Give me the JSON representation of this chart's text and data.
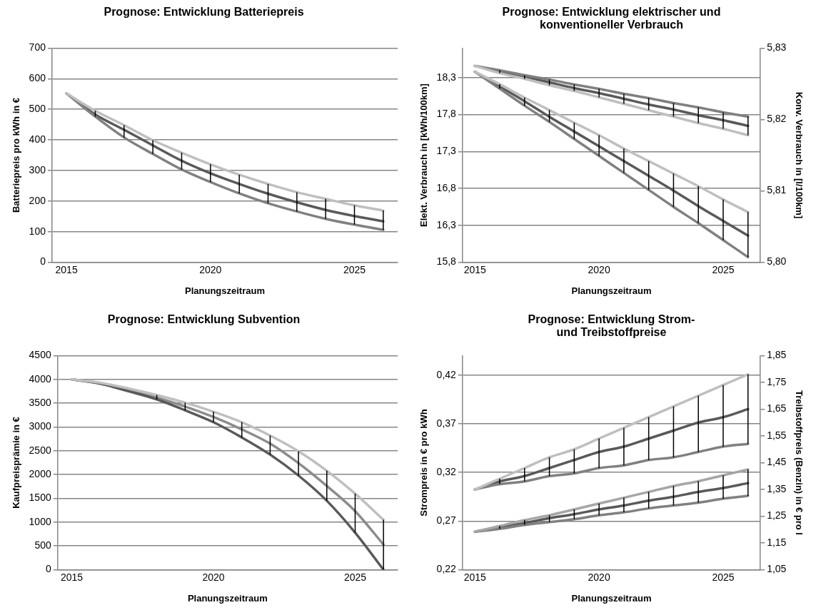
{
  "chart_data": [
    {
      "type": "line",
      "title": "Prognose: Entwicklung Batteriepreis",
      "xlabel": "Planungszeitraum",
      "ylabel": "Batteriepreis pro kWh in €",
      "x": [
        2015,
        2016,
        2017,
        2018,
        2019,
        2020,
        2021,
        2022,
        2023,
        2024,
        2025,
        2026
      ],
      "xlim": [
        2014.5,
        2026.5
      ],
      "xticks": [
        2015,
        2020,
        2025
      ],
      "ylim": [
        0,
        700
      ],
      "yticks": [
        0,
        100,
        200,
        300,
        400,
        500,
        600,
        700
      ],
      "grid": "y",
      "legend": false,
      "marker": "none",
      "line_style": "solid",
      "series": [
        {
          "color": "#bfbfbf",
          "values": [
            552,
            495,
            448,
            399,
            358,
            320,
            286,
            256,
            229,
            207,
            186,
            169
          ]
        },
        {
          "color": "#808080",
          "values": [
            552,
            476,
            408,
            354,
            303,
            262,
            225,
            193,
            166,
            142,
            123,
            106
          ]
        },
        {
          "color": "#595959",
          "values": [
            552,
            483,
            433,
            382,
            332,
            291,
            256,
            224,
            196,
            171,
            151,
            134
          ],
          "errors": [
            null,
            [
              476,
              495
            ],
            [
              408,
              448
            ],
            [
              354,
              399
            ],
            [
              303,
              358
            ],
            [
              262,
              320
            ],
            [
              225,
              286
            ],
            [
              193,
              256
            ],
            [
              166,
              229
            ],
            [
              142,
              207
            ],
            [
              123,
              186
            ],
            [
              106,
              169
            ]
          ]
        }
      ]
    },
    {
      "type": "line",
      "title": "Prognose: Entwicklung elektrischer und konventioneller Verbrauch",
      "xlabel": "Planungszeitraum",
      "ylabel": "Elekt. Verbrauch in [kWh/100km]",
      "y2label": "Konv. Verbrauch in [l/100km]",
      "x": [
        2015,
        2016,
        2017,
        2018,
        2019,
        2020,
        2021,
        2022,
        2023,
        2024,
        2025,
        2026
      ],
      "xlim": [
        2014.5,
        2026.5
      ],
      "xticks": [
        2015,
        2020,
        2025
      ],
      "ylim": [
        15.8,
        18.7
      ],
      "yticks": [
        {
          "value": 15.8,
          "label": "15,8"
        },
        {
          "value": 16.3,
          "label": "16,3"
        },
        {
          "value": 16.8,
          "label": "16,8"
        },
        {
          "value": 17.3,
          "label": "17,3"
        },
        {
          "value": 17.8,
          "label": "17,8"
        },
        {
          "value": 18.3,
          "label": "18,3"
        }
      ],
      "y2lim": [
        5.8,
        5.83
      ],
      "y2ticks": [
        {
          "value": 5.8,
          "label": "5,80"
        },
        {
          "value": 5.81,
          "label": "5,81"
        },
        {
          "value": 5.82,
          "label": "5,82"
        },
        {
          "value": 5.83,
          "label": "5,83"
        }
      ],
      "grid": "y",
      "legend": false,
      "marker": "none",
      "line_style": "solid",
      "series": [
        {
          "color": "#bfbfbf",
          "values": [
            18.38,
            18.21,
            18.03,
            17.86,
            17.69,
            17.52,
            17.34,
            17.17,
            17.0,
            16.83,
            16.65,
            16.48
          ]
        },
        {
          "color": "#808080",
          "values": [
            18.38,
            18.15,
            17.92,
            17.7,
            17.47,
            17.24,
            17.01,
            16.78,
            16.55,
            16.33,
            16.1,
            15.87
          ]
        },
        {
          "color": "#595959",
          "values": [
            18.38,
            18.18,
            17.98,
            17.77,
            17.57,
            17.37,
            17.17,
            16.97,
            16.77,
            16.56,
            16.36,
            16.16
          ],
          "errors": [
            null,
            [
              18.15,
              18.21
            ],
            [
              17.92,
              18.03
            ],
            [
              17.7,
              17.86
            ],
            [
              17.47,
              17.69
            ],
            [
              17.24,
              17.52
            ],
            [
              17.01,
              17.34
            ],
            [
              16.78,
              17.17
            ],
            [
              16.55,
              17.0
            ],
            [
              16.33,
              16.83
            ],
            [
              16.1,
              16.65
            ],
            [
              15.87,
              16.48
            ]
          ]
        },
        {
          "color": "#bfbfbf",
          "axis": "y2",
          "values": [
            5.8275,
            5.8265,
            5.8257,
            5.8248,
            5.824,
            5.8231,
            5.8222,
            5.8213,
            5.8204,
            5.8195,
            5.8187,
            5.8178
          ]
        },
        {
          "color": "#808080",
          "axis": "y2",
          "values": [
            5.8275,
            5.8269,
            5.8262,
            5.8256,
            5.8249,
            5.8243,
            5.8236,
            5.823,
            5.8223,
            5.8217,
            5.821,
            5.8204
          ]
        },
        {
          "color": "#595959",
          "axis": "y2",
          "values": [
            5.8275,
            5.8267,
            5.826,
            5.8252,
            5.8244,
            5.8237,
            5.8229,
            5.8221,
            5.8214,
            5.8206,
            5.8199,
            5.8191
          ],
          "errors": [
            null,
            [
              5.8265,
              5.8269
            ],
            [
              5.8257,
              5.8262
            ],
            [
              5.8248,
              5.8256
            ],
            [
              5.824,
              5.8249
            ],
            [
              5.8231,
              5.8243
            ],
            [
              5.8222,
              5.8236
            ],
            [
              5.8213,
              5.823
            ],
            [
              5.8204,
              5.8223
            ],
            [
              5.8195,
              5.8217
            ],
            [
              5.8187,
              5.821
            ],
            [
              5.8178,
              5.8204
            ]
          ]
        }
      ]
    },
    {
      "type": "line",
      "title": "Prognose: Entwicklung Subvention",
      "xlabel": "Planungszeitraum",
      "ylabel": "Kaufpreisprämie in €",
      "x": [
        2015,
        2016,
        2017,
        2018,
        2019,
        2020,
        2021,
        2022,
        2023,
        2024,
        2025,
        2026
      ],
      "xlim": [
        2014.5,
        2026.5
      ],
      "xticks": [
        2015,
        2020,
        2025
      ],
      "ylim": [
        0,
        4500
      ],
      "yticks": [
        0,
        500,
        1000,
        1500,
        2000,
        2500,
        3000,
        3500,
        4000,
        4500
      ],
      "grid": "y",
      "legend": false,
      "marker": "none",
      "line_style": "solid",
      "series": [
        {
          "color": "#bfbfbf",
          "values": [
            4000,
            3930,
            3810,
            3670,
            3510,
            3320,
            3100,
            2820,
            2490,
            2080,
            1600,
            1050
          ]
        },
        {
          "color": "#595959",
          "values": [
            4000,
            3910,
            3750,
            3580,
            3350,
            3100,
            2780,
            2420,
            1980,
            1450,
            780,
            0
          ]
        },
        {
          "color": "#8c8c8c",
          "values": [
            4000,
            3920,
            3780,
            3620,
            3430,
            3210,
            2950,
            2650,
            2240,
            1760,
            1230,
            530
          ],
          "errors": [
            null,
            null,
            null,
            [
              3580,
              3670
            ],
            [
              3350,
              3510
            ],
            [
              3100,
              3320
            ],
            [
              2780,
              3100
            ],
            [
              2420,
              2820
            ],
            [
              1980,
              2490
            ],
            [
              1450,
              2080
            ],
            [
              780,
              1600
            ],
            [
              0,
              1050
            ]
          ]
        }
      ]
    },
    {
      "type": "line",
      "title": "Prognose: Entwicklung Strom- und Treibstoffpreise",
      "xlabel": "Planungszeitraum",
      "ylabel": "Strompreis in € pro kWh",
      "y2label": "Treibstoffpreis (Benzin) in € pro l",
      "x": [
        2015,
        2016,
        2017,
        2018,
        2019,
        2020,
        2021,
        2022,
        2023,
        2024,
        2025,
        2026
      ],
      "xlim": [
        2014.5,
        2026.5
      ],
      "xticks": [
        2015,
        2020,
        2025
      ],
      "ylim": [
        0.22,
        0.44
      ],
      "yticks": [
        {
          "value": 0.22,
          "label": "0,22"
        },
        {
          "value": 0.27,
          "label": "0,27"
        },
        {
          "value": 0.32,
          "label": "0,32"
        },
        {
          "value": 0.37,
          "label": "0,37"
        },
        {
          "value": 0.42,
          "label": "0,42"
        }
      ],
      "y2lim": [
        1.05,
        1.85
      ],
      "y2ticks": [
        {
          "value": 1.05,
          "label": "1,05"
        },
        {
          "value": 1.15,
          "label": "1,15"
        },
        {
          "value": 1.25,
          "label": "1,25"
        },
        {
          "value": 1.35,
          "label": "1,35"
        },
        {
          "value": 1.45,
          "label": "1,45"
        },
        {
          "value": 1.55,
          "label": "1,55"
        },
        {
          "value": 1.65,
          "label": "1,65"
        },
        {
          "value": 1.75,
          "label": "1,75"
        },
        {
          "value": 1.85,
          "label": "1,85"
        }
      ],
      "grid": "y",
      "legend": false,
      "marker": "none",
      "line_style": "solid",
      "series": [
        {
          "color": "#a6a6a6",
          "values": [
            0.259,
            0.265,
            0.271,
            0.276,
            0.282,
            0.288,
            0.294,
            0.3,
            0.306,
            0.311,
            0.317,
            0.323
          ]
        },
        {
          "color": "#808080",
          "values": [
            0.259,
            0.262,
            0.266,
            0.269,
            0.272,
            0.276,
            0.279,
            0.283,
            0.286,
            0.289,
            0.293,
            0.296
          ]
        },
        {
          "color": "#595959",
          "values": [
            0.259,
            0.264,
            0.268,
            0.273,
            0.277,
            0.282,
            0.286,
            0.291,
            0.295,
            0.3,
            0.304,
            0.309
          ],
          "errors": [
            null,
            [
              0.262,
              0.265
            ],
            [
              0.266,
              0.271
            ],
            [
              0.269,
              0.276
            ],
            [
              0.272,
              0.282
            ],
            [
              0.276,
              0.288
            ],
            [
              0.279,
              0.294
            ],
            [
              0.283,
              0.3
            ],
            [
              0.286,
              0.306
            ],
            [
              0.289,
              0.311
            ],
            [
              0.293,
              0.317
            ],
            [
              0.296,
              0.323
            ]
          ]
        },
        {
          "color": "#bfbfbf",
          "axis": "y2",
          "values": [
            1.35,
            1.39,
            1.43,
            1.47,
            1.5,
            1.54,
            1.58,
            1.62,
            1.66,
            1.7,
            1.74,
            1.78
          ]
        },
        {
          "color": "#808080",
          "axis": "y2",
          "values": [
            1.35,
            1.37,
            1.38,
            1.4,
            1.41,
            1.43,
            1.44,
            1.46,
            1.47,
            1.49,
            1.51,
            1.52
          ]
        },
        {
          "color": "#595959",
          "axis": "y2",
          "values": [
            1.35,
            1.38,
            1.4,
            1.43,
            1.46,
            1.49,
            1.51,
            1.54,
            1.57,
            1.6,
            1.62,
            1.65
          ],
          "errors": [
            null,
            [
              1.37,
              1.39
            ],
            [
              1.38,
              1.43
            ],
            [
              1.4,
              1.47
            ],
            [
              1.41,
              1.5
            ],
            [
              1.43,
              1.54
            ],
            [
              1.44,
              1.58
            ],
            [
              1.46,
              1.62
            ],
            [
              1.47,
              1.66
            ],
            [
              1.49,
              1.7
            ],
            [
              1.51,
              1.74
            ],
            [
              1.52,
              1.78
            ]
          ]
        }
      ]
    }
  ]
}
